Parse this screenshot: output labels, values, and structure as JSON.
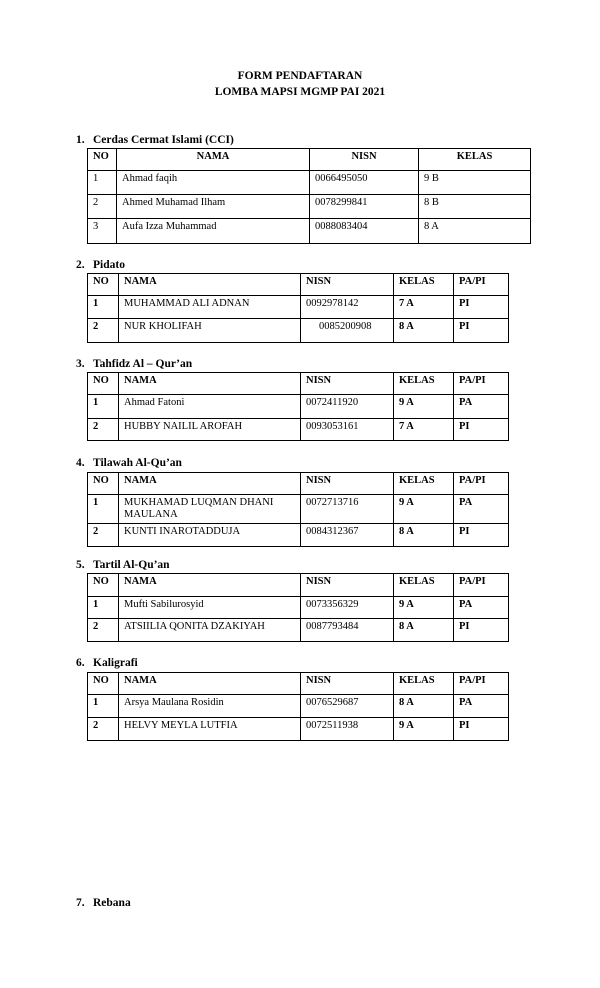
{
  "header": {
    "title_line1": "FORM PENDAFTARAN",
    "title_line2": "LOMBA MAPSI MGMP PAI 2021"
  },
  "sections": [
    {
      "number": "1.",
      "title": "Cerdas Cermat Islami (CCI)",
      "columns": [
        "NO",
        "NAMA",
        "NISN",
        "KELAS"
      ],
      "rows": [
        [
          "1",
          "Ahmad faqih",
          "0066495050",
          "9 B"
        ],
        [
          "2",
          "Ahmed Muhamad Ilham",
          "0078299841",
          "8 B"
        ],
        [
          "3",
          "Aufa Izza Muhammad",
          "0088083404",
          "8 A"
        ]
      ]
    },
    {
      "number": "2.",
      "title": "Pidato",
      "columns": [
        "NO",
        "NAMA",
        "NISN",
        "KELAS",
        "PA/PI"
      ],
      "rows": [
        [
          "1",
          "MUHAMMAD ALI ADNAN",
          "0092978142",
          "7 A",
          "PI"
        ],
        [
          "2",
          "NUR KHOLIFAH",
          "0085200908",
          "8 A",
          "PI"
        ]
      ]
    },
    {
      "number": "3.",
      "title": "Tahfidz Al – Qur’an",
      "columns": [
        "NO",
        "NAMA",
        "NISN",
        "KELAS",
        "PA/PI"
      ],
      "rows": [
        [
          "1",
          "Ahmad Fatoni",
          "0072411920",
          "9 A",
          "PA"
        ],
        [
          "2",
          "HUBBY NAILIL AROFAH",
          "0093053161",
          "7 A",
          "PI"
        ]
      ]
    },
    {
      "number": "4.",
      "title": "Tilawah Al-Qu’an",
      "columns": [
        "NO",
        "NAMA",
        "NISN",
        "KELAS",
        "PA/PI"
      ],
      "rows": [
        [
          "1",
          "MUKHAMAD LUQMAN DHANI MAULANA",
          "0072713716",
          "9 A",
          "PA"
        ],
        [
          "2",
          "KUNTI INAROTADDUJA",
          "0084312367",
          "8 A",
          "PI"
        ]
      ]
    },
    {
      "number": "5.",
      "title": "Tartil Al-Qu’an",
      "columns": [
        "NO",
        "NAMA",
        "NISN",
        "KELAS",
        "PA/PI"
      ],
      "rows": [
        [
          "1",
          "Mufti Sabilurosyid",
          "0073356329",
          "9 A",
          "PA"
        ],
        [
          "2",
          "ATSIILIA QONITA DZAKIYAH",
          "0087793484",
          "8 A",
          "PI"
        ]
      ]
    },
    {
      "number": "6.",
      "title": "Kaligrafi",
      "columns": [
        "NO",
        "NAMA",
        "NISN",
        "KELAS",
        "PA/PI"
      ],
      "rows": [
        [
          "1",
          "Arsya Maulana Rosidin",
          "0076529687",
          "8 A",
          "PA"
        ],
        [
          "2",
          "HELVY MEYLA LUTFIA",
          "0072511938",
          "9 A",
          "PI"
        ]
      ]
    },
    {
      "number": "7.",
      "title": "Rebana",
      "columns": [],
      "rows": []
    }
  ]
}
